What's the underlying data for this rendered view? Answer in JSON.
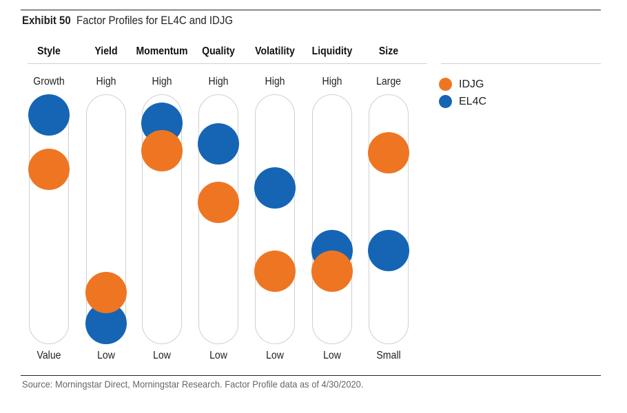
{
  "title": {
    "exhibit": "Exhibit 50",
    "text": "Factor Profiles for EL4C and IDJG"
  },
  "source": "Source: Morningstar Direct, Morningstar Research. Factor Profile data as of 4/30/2020.",
  "chart_data": {
    "type": "scatter",
    "title": "Factor Profiles for EL4C and IDJG",
    "note": "values are position along each factor scale, 0 = bottom (low) to 100 = top (high)",
    "factors": [
      {
        "name": "Style",
        "top": "Growth",
        "bottom": "Value"
      },
      {
        "name": "Yield",
        "top": "High",
        "bottom": "Low"
      },
      {
        "name": "Momentum",
        "top": "High",
        "bottom": "Low"
      },
      {
        "name": "Quality",
        "top": "High",
        "bottom": "Low"
      },
      {
        "name": "Volatility",
        "top": "High",
        "bottom": "Low"
      },
      {
        "name": "Liquidity",
        "top": "High",
        "bottom": "Low"
      },
      {
        "name": "Size",
        "top": "Large",
        "bottom": "Small"
      }
    ],
    "series": [
      {
        "name": "EL4C",
        "color": "#1565B4",
        "values": [
          100,
          0,
          96,
          86,
          65,
          35,
          35
        ]
      },
      {
        "name": "IDJG",
        "color": "#EE7623",
        "values": [
          74,
          15,
          83,
          58,
          25,
          25,
          82
        ]
      }
    ],
    "legend": [
      "IDJG",
      "EL4C"
    ],
    "legend_position": "top-right"
  }
}
